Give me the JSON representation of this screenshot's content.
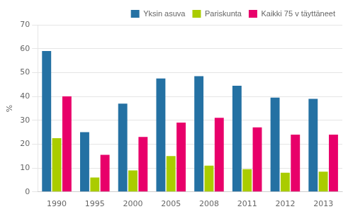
{
  "chart_data": {
    "type": "bar",
    "categories": [
      "1990",
      "1995",
      "2000",
      "2005",
      "2008",
      "2011",
      "2012",
      "2013"
    ],
    "series": [
      {
        "name": "Yksin asuva",
        "color": "#2471A3",
        "values": [
          59,
          25,
          37,
          47.5,
          48.5,
          44.5,
          39.5,
          39
        ]
      },
      {
        "name": "Pariskunta",
        "color": "#AACC00",
        "values": [
          22.5,
          6,
          9,
          15,
          11,
          9.5,
          8,
          8.5
        ]
      },
      {
        "name": "Kaikki 75 v täyttäneet",
        "color": "#E8006A",
        "values": [
          40,
          15.5,
          23,
          29,
          31,
          27,
          24,
          24
        ]
      }
    ],
    "y_label": "%",
    "ylim": [
      0,
      70
    ],
    "yticks": [
      0,
      10,
      20,
      30,
      40,
      50,
      60,
      70
    ],
    "grid": true,
    "legend": "upper right"
  }
}
